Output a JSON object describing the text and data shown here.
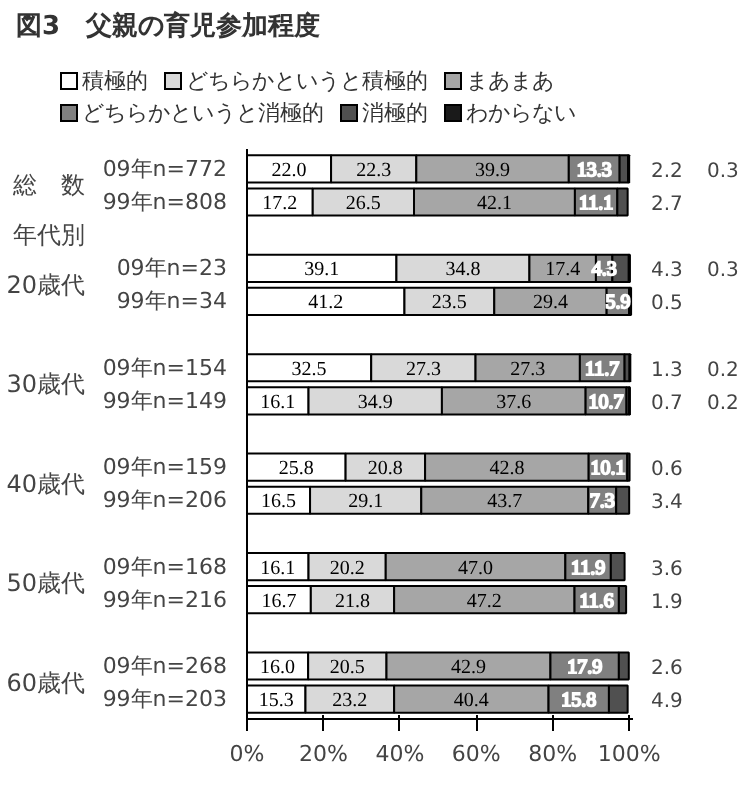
{
  "chart_data": {
    "type": "bar",
    "orientation": "horizontal",
    "stacked": true,
    "title": "図3　父親の育児参加程度",
    "categories": [
      "09年n=772",
      "99年n=808",
      null,
      "09年n=23",
      "99年n=34",
      null,
      "09年n=154",
      "99年n=149",
      null,
      "09年n=159",
      "99年n=206",
      null,
      "09年n=168",
      "99年n=216",
      null,
      "09年n=268",
      "99年n=203"
    ],
    "series": [
      {
        "name": "積極的",
        "color": "#ffffff",
        "values": [
          22.0,
          17.2,
          null,
          39.1,
          41.2,
          null,
          32.5,
          16.1,
          null,
          25.8,
          16.5,
          null,
          16.1,
          16.7,
          null,
          16.0,
          15.3
        ],
        "value_labels": [
          "22.0",
          "17.2",
          null,
          "39.1",
          "41.2",
          null,
          "32.5",
          "16.1",
          null,
          "25.8",
          "16.5",
          null,
          "16.1",
          "16.7",
          null,
          "16.0",
          "15.3"
        ]
      },
      {
        "name": "どちらかというと積極的",
        "color": "#d9d9d9",
        "values": [
          22.3,
          26.5,
          null,
          34.8,
          23.5,
          null,
          27.3,
          34.9,
          null,
          20.8,
          29.1,
          null,
          20.2,
          21.8,
          null,
          20.5,
          23.2
        ],
        "value_labels": [
          "22.3",
          "26.5",
          null,
          "34.8",
          "23.5",
          null,
          "27.3",
          "34.9",
          null,
          "20.8",
          "29.1",
          null,
          "20.2",
          "21.8",
          null,
          "20.5",
          "23.2"
        ]
      },
      {
        "name": "まあまあ",
        "color": "#a6a6a6",
        "values": [
          39.9,
          42.1,
          null,
          17.4,
          29.4,
          null,
          27.3,
          37.6,
          null,
          42.8,
          43.7,
          null,
          47.0,
          47.2,
          null,
          42.9,
          40.4
        ],
        "value_labels": [
          "39.9",
          "42.1",
          null,
          "17.4",
          "29.4",
          null,
          "27.3",
          "37.6",
          null,
          "42.8",
          "43.7",
          null,
          "47.0",
          "47.2",
          null,
          "42.9",
          "40.4"
        ]
      },
      {
        "name": "どちらかというと消極的",
        "color": "#808080",
        "values": [
          13.3,
          11.1,
          null,
          4.3,
          5.9,
          null,
          11.7,
          10.7,
          null,
          10.1,
          7.3,
          null,
          11.9,
          11.6,
          null,
          17.9,
          15.8
        ],
        "value_labels": [
          "13.3",
          "11.1",
          null,
          "4.3",
          "5.9",
          null,
          "11.7",
          "10.7",
          null,
          "10.1",
          "7.3",
          null,
          "11.9",
          "11.6",
          null,
          "17.9",
          "15.8"
        ]
      },
      {
        "name": "消極的",
        "color": "#505050",
        "values": [
          2.2,
          2.7,
          null,
          4.3,
          0.5,
          null,
          1.3,
          0.7,
          null,
          0.6,
          3.4,
          null,
          3.6,
          1.9,
          null,
          2.6,
          4.9
        ],
        "value_labels": [
          "2.2",
          "2.7",
          null,
          "4.3",
          "0.5",
          null,
          "1.3",
          "0.7",
          null,
          "0.6",
          "3.4",
          null,
          "3.6",
          "1.9",
          null,
          "2.6",
          "4.9"
        ]
      },
      {
        "name": "わからない",
        "color": "#1a1a1a",
        "values": [
          0.3,
          null,
          null,
          0.3,
          null,
          null,
          0.2,
          0.2,
          null,
          null,
          null,
          null,
          null,
          null,
          null,
          null,
          null
        ],
        "value_labels": [
          "0.3",
          null,
          null,
          "0.3",
          null,
          null,
          "0.2",
          "0.2",
          null,
          null,
          null,
          null,
          null,
          null,
          null,
          null,
          null
        ]
      }
    ],
    "xlim": [
      0,
      101
    ],
    "xticks": [
      {
        "value": 0,
        "label": "0%"
      },
      {
        "value": 20,
        "label": "20%"
      },
      {
        "value": 40,
        "label": "40%"
      },
      {
        "value": 60,
        "label": "60%"
      },
      {
        "value": 80,
        "label": "80%"
      },
      {
        "value": 100,
        "label": "100%"
      }
    ],
    "annotations": [
      "総　数",
      "年代別",
      "20歳代",
      "30歳代",
      "40歳代",
      "50歳代",
      "60歳代"
    ],
    "legend": "top",
    "grid": false
  }
}
